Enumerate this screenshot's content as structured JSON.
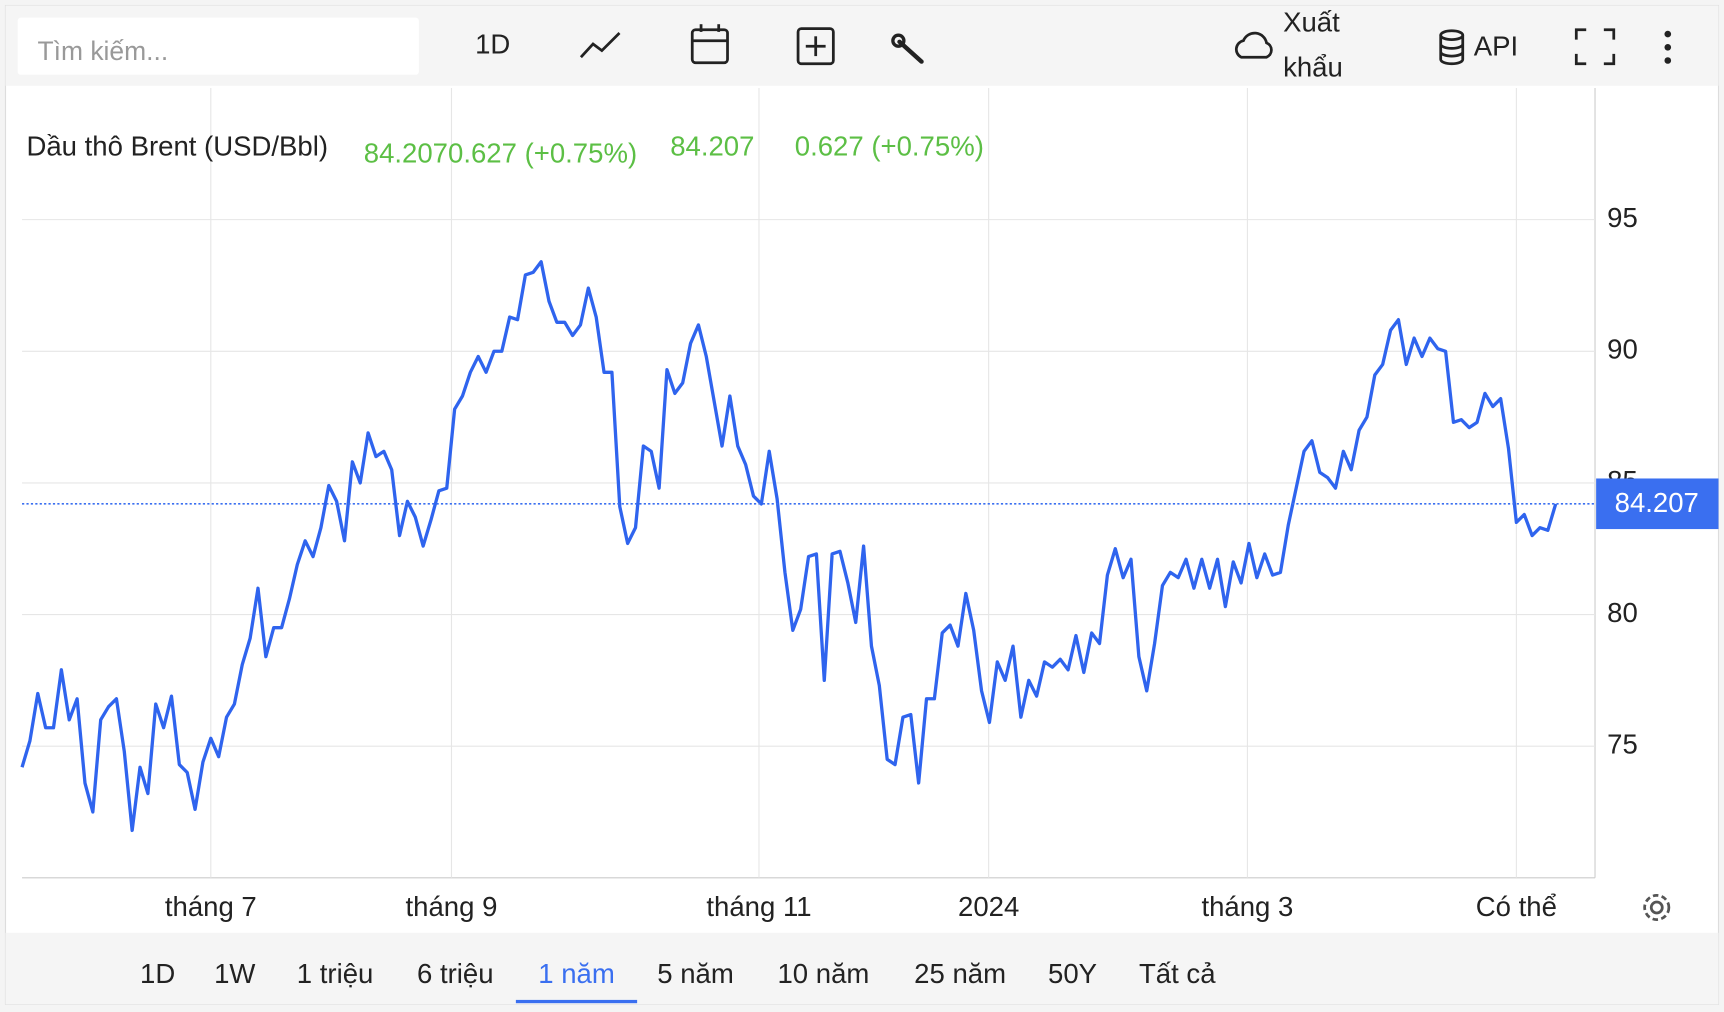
{
  "toolbar": {
    "search_placeholder": "Tìm kiếm...",
    "interval": "1D",
    "export": [
      "Xuất",
      "khẩu"
    ],
    "api": "API"
  },
  "chart_data": {
    "type": "line",
    "title": "Dầu thô Brent (USD/Bbl)",
    "legend": {
      "combined": "84.2070.627 (+0.75%)",
      "change": "0.627 (+0.75%)"
    },
    "current_price": 84.207,
    "color": "#2f64ee",
    "legend_color": "#5cbf45",
    "price_label_color": "#3a6ff0",
    "ylim": [
      70,
      100
    ],
    "yticks": [
      75,
      80,
      85,
      90,
      95
    ],
    "xlim": [
      0,
      200
    ],
    "xticks": [
      {
        "value": 24,
        "label": "tháng 7"
      },
      {
        "value": 54.6,
        "label": "tháng 9"
      },
      {
        "value": 93.7,
        "label": "tháng 11"
      },
      {
        "value": 122.9,
        "label": "2024"
      },
      {
        "value": 155.8,
        "label": "tháng 3"
      },
      {
        "value": 190,
        "label": "Có thể"
      }
    ],
    "grid": true,
    "values": [
      74.2,
      75.2,
      77,
      75.7,
      75.7,
      77.9,
      76,
      76.8,
      73.6,
      72.5,
      76,
      76.5,
      76.8,
      74.8,
      71.8,
      74.2,
      73.2,
      76.6,
      75.7,
      76.9,
      74.3,
      74,
      72.6,
      74.4,
      75.3,
      74.6,
      76.1,
      76.6,
      78.1,
      79.1,
      81,
      78.4,
      79.5,
      79.5,
      80.6,
      81.9,
      82.8,
      82.2,
      83.3,
      84.9,
      84.3,
      82.8,
      85.8,
      85,
      86.9,
      86,
      86.2,
      85.5,
      83,
      84.3,
      83.7,
      82.6,
      83.6,
      84.7,
      84.8,
      87.8,
      88.3,
      89.2,
      89.8,
      89.2,
      90,
      90,
      91.3,
      91.2,
      92.9,
      93,
      93.4,
      91.9,
      91.1,
      91.1,
      90.6,
      91,
      92.4,
      91.3,
      89.2,
      89.2,
      84.1,
      82.7,
      83.3,
      86.4,
      86.2,
      84.8,
      89.3,
      88.4,
      88.8,
      90.3,
      91,
      89.8,
      88.1,
      86.4,
      88.3,
      86.4,
      85.7,
      84.5,
      84.2,
      86.2,
      84.4,
      81.6,
      79.4,
      80.2,
      82.2,
      82.3,
      77.5,
      82.3,
      82.4,
      81.2,
      79.7,
      82.6,
      78.8,
      77.3,
      74.5,
      74.3,
      76.1,
      76.2,
      73.6,
      76.8,
      76.8,
      79.3,
      79.6,
      78.8,
      80.8,
      79.4,
      77.1,
      75.9,
      78.2,
      77.5,
      78.8,
      76.1,
      77.5,
      76.9,
      78.2,
      78,
      78.3,
      77.9,
      79.2,
      77.8,
      79.3,
      78.9,
      81.5,
      82.5,
      81.4,
      82.1,
      78.4,
      77.1,
      78.9,
      81.1,
      81.6,
      81.4,
      82.1,
      81,
      82.1,
      81,
      82.1,
      80.3,
      82,
      81.2,
      82.7,
      81.4,
      82.3,
      81.5,
      81.6,
      83.4,
      84.8,
      86.2,
      86.6,
      85.4,
      85.2,
      84.8,
      86.2,
      85.5,
      87,
      87.5,
      89.1,
      89.5,
      90.8,
      91.2,
      89.5,
      90.5,
      89.8,
      90.5,
      90.1,
      90,
      87.3,
      87.4,
      87.1,
      87.3,
      88.4,
      87.9,
      88.2,
      86.3,
      83.5,
      83.8,
      83,
      83.3,
      83.2,
      84.2
    ]
  },
  "ranges": [
    "1D",
    "1W",
    "1 triệu",
    "6 triệu",
    "1 năm",
    "5 năm",
    "10 năm",
    "25 năm",
    "50Y",
    "Tất cả"
  ],
  "active_range_index": 4
}
